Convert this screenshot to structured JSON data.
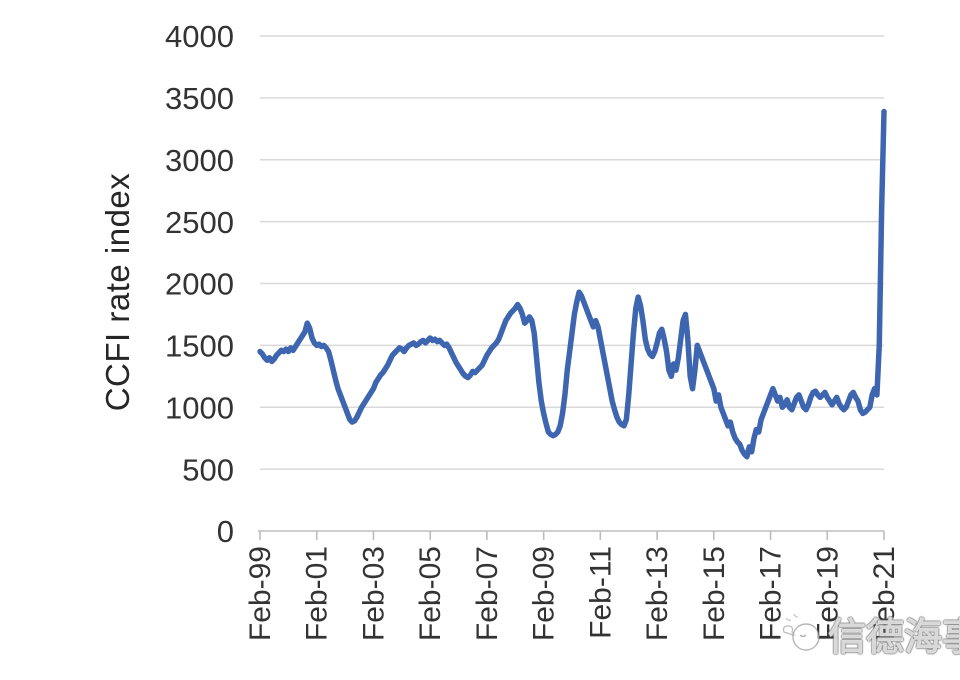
{
  "chart_data": {
    "type": "line",
    "title": "",
    "xlabel": "",
    "ylabel": "CCFI rate index",
    "series_name": "CCFI rate index",
    "frequency": "monthly",
    "x_start": "Feb-99",
    "x_end": "Feb-21",
    "x_tick_labels": [
      "Feb-99",
      "Feb-01",
      "Feb-03",
      "Feb-05",
      "Feb-07",
      "Feb-09",
      "Feb-11",
      "Feb-13",
      "Feb-15",
      "Feb-17",
      "Feb-19",
      "Feb-21"
    ],
    "y_ticks": [
      0,
      500,
      1000,
      1500,
      2000,
      2500,
      3000,
      3500,
      4000
    ],
    "ylim": [
      0,
      4000
    ],
    "grid": "horizontal",
    "legend": "none",
    "line_color": "#3e66b0",
    "gridline_color": "#d9d9d9",
    "axis_color": "#bdbdbd",
    "tick_label_color": "#333333",
    "values": [
      1450,
      1430,
      1400,
      1380,
      1400,
      1370,
      1390,
      1420,
      1440,
      1460,
      1450,
      1470,
      1450,
      1480,
      1460,
      1490,
      1520,
      1550,
      1580,
      1610,
      1680,
      1640,
      1560,
      1520,
      1500,
      1510,
      1490,
      1500,
      1480,
      1450,
      1380,
      1300,
      1220,
      1150,
      1100,
      1050,
      1000,
      950,
      900,
      880,
      890,
      920,
      960,
      1000,
      1030,
      1060,
      1090,
      1120,
      1150,
      1200,
      1230,
      1260,
      1280,
      1310,
      1340,
      1380,
      1420,
      1440,
      1460,
      1480,
      1470,
      1450,
      1480,
      1500,
      1510,
      1520,
      1500,
      1510,
      1530,
      1540,
      1520,
      1540,
      1560,
      1540,
      1550,
      1530,
      1540,
      1520,
      1500,
      1510,
      1480,
      1440,
      1400,
      1360,
      1330,
      1300,
      1270,
      1250,
      1240,
      1260,
      1290,
      1280,
      1300,
      1320,
      1340,
      1380,
      1420,
      1450,
      1480,
      1500,
      1520,
      1550,
      1600,
      1650,
      1700,
      1730,
      1760,
      1780,
      1800,
      1830,
      1800,
      1750,
      1680,
      1700,
      1730,
      1700,
      1600,
      1400,
      1200,
      1050,
      950,
      870,
      800,
      780,
      770,
      780,
      800,
      850,
      950,
      1100,
      1300,
      1450,
      1600,
      1750,
      1850,
      1930,
      1900,
      1850,
      1800,
      1750,
      1700,
      1650,
      1700,
      1650,
      1550,
      1450,
      1350,
      1250,
      1150,
      1050,
      980,
      920,
      880,
      860,
      850,
      900,
      1100,
      1350,
      1600,
      1800,
      1890,
      1820,
      1700,
      1550,
      1470,
      1430,
      1410,
      1450,
      1520,
      1600,
      1630,
      1550,
      1450,
      1300,
      1250,
      1350,
      1300,
      1400,
      1550,
      1700,
      1750,
      1550,
      1250,
      1150,
      1300,
      1500,
      1450,
      1400,
      1350,
      1300,
      1250,
      1200,
      1150,
      1050,
      1100,
      1000,
      950,
      900,
      850,
      880,
      800,
      750,
      720,
      700,
      650,
      620,
      600,
      680,
      640,
      750,
      820,
      800,
      900,
      950,
      1000,
      1050,
      1100,
      1150,
      1100,
      1050,
      1080,
      1000,
      1020,
      1060,
      1000,
      980,
      1030,
      1080,
      1100,
      1050,
      1000,
      980,
      1020,
      1080,
      1120,
      1130,
      1100,
      1080,
      1100,
      1120,
      1080,
      1050,
      1020,
      1050,
      1080,
      1030,
      1000,
      980,
      1000,
      1050,
      1100,
      1120,
      1080,
      1050,
      980,
      950,
      960,
      980,
      1000,
      1100,
      1150,
      1100,
      1500,
      2600,
      3390
    ]
  },
  "watermark": {
    "text": "信德海事"
  }
}
